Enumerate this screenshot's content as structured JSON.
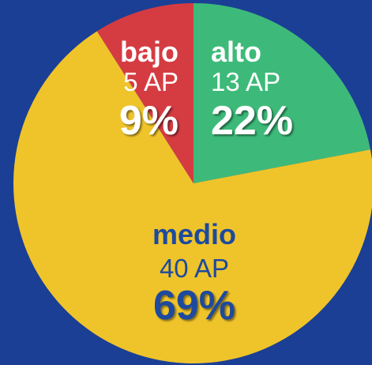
{
  "chart_data": {
    "type": "pie",
    "categories": [
      "alto",
      "medio",
      "bajo"
    ],
    "values": [
      22,
      69,
      9
    ],
    "value_labels": [
      "22%",
      "69%",
      "9%"
    ],
    "counts": [
      13,
      40,
      5
    ],
    "count_labels": [
      "13 AP",
      "40 AP",
      "5 AP"
    ],
    "colors": [
      "#3dba79",
      "#efc42b",
      "#d53c42"
    ],
    "label_colors": [
      "#ffffff",
      "#1d4a9e",
      "#ffffff"
    ]
  }
}
